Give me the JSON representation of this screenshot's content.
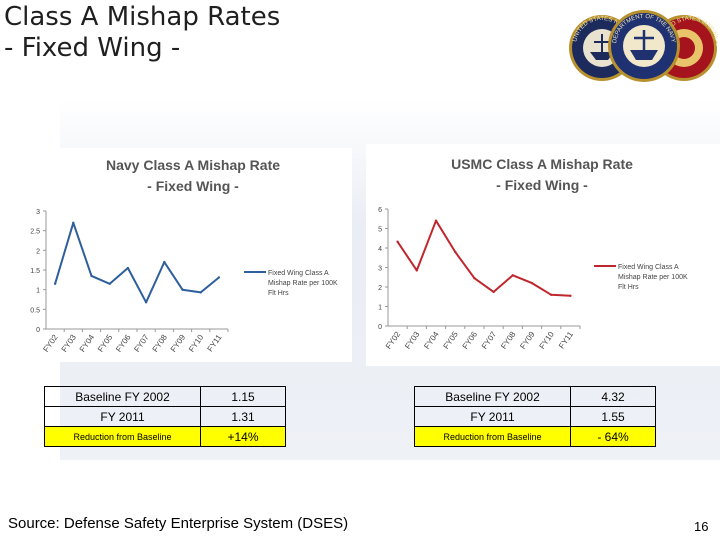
{
  "slide": {
    "title_line1": "Class A Mishap Rates",
    "title_line2": "- Fixed Wing -",
    "source": "Source: Defense Safety Enterprise System (DSES)",
    "page_number": "16"
  },
  "chart_data": [
    {
      "type": "line",
      "title_line1": "Navy Class A Mishap Rate",
      "title_line2": "- Fixed Wing -",
      "categories": [
        "FY02",
        "FY03",
        "FY04",
        "FY05",
        "FY06",
        "FY07",
        "FY08",
        "FY09",
        "FY10",
        "FY11"
      ],
      "series": [
        {
          "name": "Fixed Wing Class A Mishap Rate per 100K Flt Hrs",
          "values": [
            1.15,
            2.7,
            1.35,
            1.15,
            1.55,
            0.68,
            1.7,
            1.0,
            0.93,
            1.31
          ],
          "color": "#2e5f9c"
        }
      ],
      "ylim": [
        0,
        3
      ],
      "yticks": [
        "0",
        "0.5",
        "1",
        "1.5",
        "2",
        "2.5",
        "3"
      ],
      "legend": "right",
      "legend_lines": [
        "Fixed Wing Class A",
        "Mishap Rate per 100K",
        "Flt Hrs"
      ],
      "grid": false
    },
    {
      "type": "line",
      "title_line1": "USMC Class A Mishap Rate",
      "title_line2": "- Fixed Wing -",
      "categories": [
        "FY02",
        "FY03",
        "FY04",
        "FY05",
        "FY06",
        "FY07",
        "FY08",
        "FY09",
        "FY10",
        "FY11"
      ],
      "series": [
        {
          "name": "Fixed Wing Class A Mishap Rate per 100K Flt Hrs",
          "values": [
            4.32,
            2.85,
            5.4,
            3.8,
            2.45,
            1.75,
            2.6,
            2.2,
            1.6,
            1.55
          ],
          "color": "#c0272d"
        }
      ],
      "ylim": [
        0,
        6
      ],
      "yticks": [
        "0",
        "1",
        "2",
        "3",
        "4",
        "5",
        "6"
      ],
      "legend": "right",
      "legend_lines": [
        "Fixed Wing Class A",
        "Mishap Rate per 100K",
        "Flt Hrs"
      ],
      "grid": false
    }
  ],
  "tables": {
    "navy": {
      "baseline_label": "Baseline FY 2002",
      "baseline_value": "1.15",
      "current_label": "FY 2011",
      "current_value": "1.31",
      "reduction_label": "Reduction from Baseline",
      "reduction_value": "+14%"
    },
    "usmc": {
      "baseline_label": "Baseline FY 2002",
      "baseline_value": "4.32",
      "current_label": "FY 2011",
      "current_value": "1.55",
      "reduction_label": "Reduction from Baseline",
      "reduction_value": "- 64%"
    }
  },
  "seals": {
    "navy_text": "UNITED STATES NAVY",
    "don_text": "DEPARTMENT OF THE NAVY",
    "usmc_text": "UNITED STATES MARINE CORPS"
  },
  "colors": {
    "navy_line": "#2e5f9c",
    "usmc_line": "#c0272d",
    "highlight": "#ffff00"
  }
}
